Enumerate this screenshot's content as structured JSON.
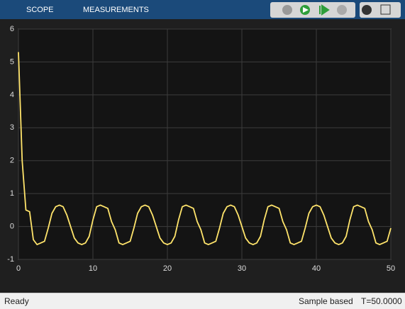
{
  "toolbar": {
    "tabs": [
      "SCOPE",
      "MEASUREMENTS"
    ]
  },
  "status": {
    "left": "Ready",
    "mode": "Sample based",
    "time": "T=50.0000"
  },
  "chart_data": {
    "type": "line",
    "x": [
      0,
      0.5,
      1,
      1.5,
      2,
      2.5,
      3,
      3.5,
      4,
      4.5,
      5,
      5.5,
      6,
      6.5,
      7,
      7.5,
      8,
      8.5,
      9,
      9.5,
      10,
      10.5,
      11,
      11.5,
      12,
      12.5,
      13,
      13.5,
      14,
      14.5,
      15,
      15.5,
      16,
      16.5,
      17,
      17.5,
      18,
      18.5,
      19,
      19.5,
      20,
      20.5,
      21,
      21.5,
      22,
      22.5,
      23,
      23.5,
      24,
      24.5,
      25,
      25.5,
      26,
      26.5,
      27,
      27.5,
      28,
      28.5,
      29,
      29.5,
      30,
      30.5,
      31,
      31.5,
      32,
      32.5,
      33,
      33.5,
      34,
      34.5,
      35,
      35.5,
      36,
      36.5,
      37,
      37.5,
      38,
      38.5,
      39,
      39.5,
      40,
      40.5,
      41,
      41.5,
      42,
      42.5,
      43,
      43.5,
      44,
      44.5,
      45,
      45.5,
      46,
      46.5,
      47,
      47.5,
      48,
      48.5,
      49,
      49.5,
      50
    ],
    "series": [
      {
        "color": "#ffe46b",
        "values": [
          5.3,
          2.0,
          0.5,
          0.45,
          -0.4,
          -0.55,
          -0.5,
          -0.45,
          -0.05,
          0.4,
          0.6,
          0.65,
          0.6,
          0.35,
          0.0,
          -0.35,
          -0.5,
          -0.55,
          -0.5,
          -0.3,
          0.2,
          0.6,
          0.65,
          0.6,
          0.55,
          0.15,
          -0.1,
          -0.5,
          -0.55,
          -0.5,
          -0.45,
          -0.05,
          0.4,
          0.6,
          0.65,
          0.6,
          0.35,
          0.0,
          -0.35,
          -0.5,
          -0.55,
          -0.5,
          -0.3,
          0.2,
          0.6,
          0.65,
          0.6,
          0.55,
          0.15,
          -0.1,
          -0.5,
          -0.55,
          -0.5,
          -0.45,
          -0.05,
          0.4,
          0.6,
          0.65,
          0.6,
          0.35,
          0.0,
          -0.35,
          -0.5,
          -0.55,
          -0.5,
          -0.3,
          0.2,
          0.6,
          0.65,
          0.6,
          0.55,
          0.15,
          -0.1,
          -0.5,
          -0.55,
          -0.5,
          -0.45,
          -0.05,
          0.4,
          0.6,
          0.65,
          0.6,
          0.35,
          0.0,
          -0.35,
          -0.5,
          -0.55,
          -0.5,
          -0.3,
          0.2,
          0.6,
          0.65,
          0.6,
          0.55,
          0.15,
          -0.1,
          -0.5,
          -0.55,
          -0.5,
          -0.45,
          -0.05
        ]
      }
    ],
    "xlim": [
      0,
      50
    ],
    "xticks": [
      0,
      10,
      20,
      30,
      40,
      50
    ],
    "ylim": [
      -1,
      6
    ],
    "yticks": [
      -1,
      0,
      1,
      2,
      3,
      4,
      5,
      6
    ],
    "grid": true
  }
}
